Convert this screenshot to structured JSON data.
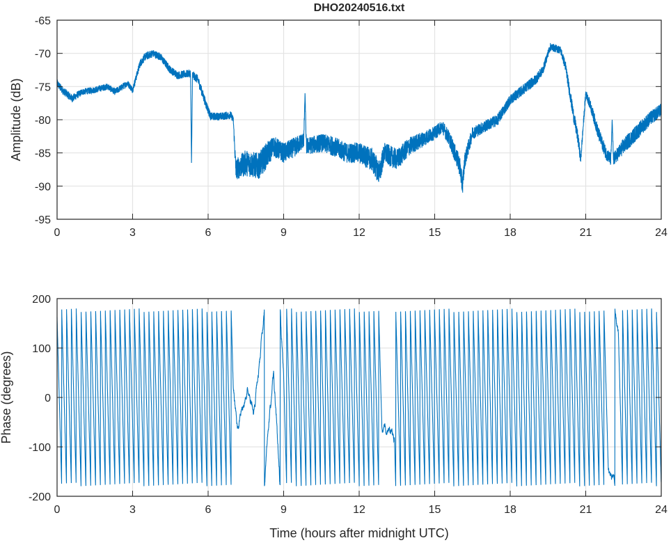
{
  "chart_data": [
    {
      "type": "line",
      "title": "DHO20240516.txt",
      "xlabel": "",
      "ylabel": "Amplitude (dB)",
      "xlim": [
        0,
        24
      ],
      "ylim": [
        -95,
        -65
      ],
      "xticks": [
        0,
        3,
        6,
        9,
        12,
        15,
        18,
        21,
        24
      ],
      "yticks": [
        -65,
        -70,
        -75,
        -80,
        -85,
        -90,
        -95
      ],
      "grid": true,
      "color": "#0072BD",
      "series": [
        {
          "name": "Amplitude",
          "points_t_db_noise": [
            [
              0,
              -74.5,
              0.6
            ],
            [
              0.2,
              -75.5,
              0.6
            ],
            [
              0.6,
              -76.8,
              0.6
            ],
            [
              1,
              -75.8,
              0.5
            ],
            [
              1.5,
              -75.5,
              0.5
            ],
            [
              2,
              -75,
              0.5
            ],
            [
              2.3,
              -75.8,
              0.5
            ],
            [
              2.8,
              -74.5,
              0.5
            ],
            [
              3.0,
              -75.5,
              0.5
            ],
            [
              3.3,
              -71.5,
              0.6
            ],
            [
              3.5,
              -70.5,
              0.6
            ],
            [
              3.8,
              -70,
              0.6
            ],
            [
              4.1,
              -70.5,
              0.6
            ],
            [
              4.5,
              -72.5,
              0.6
            ],
            [
              4.8,
              -73.3,
              0.6
            ],
            [
              5.3,
              -73,
              0.6
            ],
            [
              5.34,
              -86.5,
              0
            ],
            [
              5.38,
              -73.2,
              0.6
            ],
            [
              5.6,
              -74,
              0.7
            ],
            [
              5.9,
              -77.5,
              0.7
            ],
            [
              6.1,
              -79.5,
              0.6
            ],
            [
              6.5,
              -79.5,
              0.6
            ],
            [
              6.9,
              -79.3,
              0.6
            ],
            [
              7.0,
              -80,
              0.5
            ],
            [
              7.1,
              -87.5,
              1.6
            ],
            [
              7.5,
              -86.5,
              2
            ],
            [
              8,
              -87,
              2
            ],
            [
              8.3,
              -85.5,
              2
            ],
            [
              8.6,
              -84,
              1.6
            ],
            [
              9,
              -85,
              1.5
            ],
            [
              9.5,
              -84,
              1.5
            ],
            [
              9.8,
              -83,
              1.2
            ],
            [
              9.85,
              -76,
              0
            ],
            [
              9.9,
              -84,
              1.3
            ],
            [
              10.5,
              -83.5,
              1.4
            ],
            [
              11,
              -84,
              1.5
            ],
            [
              11.5,
              -85,
              1.5
            ],
            [
              12,
              -85,
              1.6
            ],
            [
              12.5,
              -86,
              1.8
            ],
            [
              12.8,
              -88,
              1.8
            ],
            [
              13,
              -85,
              1.6
            ],
            [
              13.5,
              -86,
              1.6
            ],
            [
              14,
              -84,
              1.4
            ],
            [
              14.5,
              -83,
              1.2
            ],
            [
              15,
              -82,
              1.0
            ],
            [
              15.3,
              -81,
              1.0
            ],
            [
              15.6,
              -83,
              1.2
            ],
            [
              16,
              -87,
              1.5
            ],
            [
              16.1,
              -90,
              1.5
            ],
            [
              16.2,
              -86,
              1.2
            ],
            [
              16.5,
              -82,
              1.0
            ],
            [
              17,
              -81,
              0.9
            ],
            [
              17.5,
              -80,
              0.9
            ],
            [
              18,
              -77,
              0.8
            ],
            [
              18.5,
              -75.5,
              0.8
            ],
            [
              19,
              -74,
              0.8
            ],
            [
              19.3,
              -72.5,
              0.7
            ],
            [
              19.5,
              -70,
              0.6
            ],
            [
              19.6,
              -69,
              0.6
            ],
            [
              20,
              -69.5,
              0.6
            ],
            [
              20.2,
              -72,
              0.8
            ],
            [
              20.5,
              -79,
              1.0
            ],
            [
              20.7,
              -83,
              1.0
            ],
            [
              20.8,
              -86,
              0.8
            ],
            [
              21,
              -76,
              0.6
            ],
            [
              21.2,
              -78,
              0.8
            ],
            [
              21.5,
              -82,
              1.0
            ],
            [
              21.8,
              -85,
              1.0
            ],
            [
              22,
              -86,
              1.0
            ],
            [
              22.05,
              -80,
              0
            ],
            [
              22.1,
              -86,
              1.0
            ],
            [
              22.5,
              -84,
              1.2
            ],
            [
              23,
              -82,
              1.2
            ],
            [
              23.5,
              -80,
              1.1
            ],
            [
              24,
              -78.5,
              1.0
            ]
          ]
        }
      ]
    },
    {
      "type": "line",
      "title": "",
      "xlabel": "Time (hours after midnight UTC)",
      "ylabel": "Phase (degrees)",
      "xlim": [
        0,
        24
      ],
      "ylim": [
        -200,
        200
      ],
      "xticks": [
        0,
        3,
        6,
        9,
        12,
        15,
        18,
        21,
        24
      ],
      "yticks": [
        200,
        100,
        0,
        -100,
        -200
      ],
      "grid": true,
      "color": "#0072BD",
      "wrap_range_deg": [
        -180,
        180
      ],
      "series": [
        {
          "name": "Phase",
          "rate_segments_cycles_per_hour": [
            [
              0,
              7.0,
              5.2
            ],
            [
              7.0,
              7.2,
              1.5
            ],
            [
              7.2,
              7.6,
              -0.6
            ],
            [
              7.6,
              7.8,
              0.4
            ],
            [
              7.8,
              8.6,
              -1.2
            ],
            [
              8.6,
              9.0,
              2.5
            ],
            [
              9.0,
              12.9,
              5.2
            ],
            [
              12.9,
              13.4,
              0.5
            ],
            [
              13.4,
              21.9,
              5.2
            ],
            [
              21.9,
              22.3,
              0.6
            ],
            [
              22.3,
              24,
              5.2
            ]
          ]
        }
      ]
    }
  ]
}
